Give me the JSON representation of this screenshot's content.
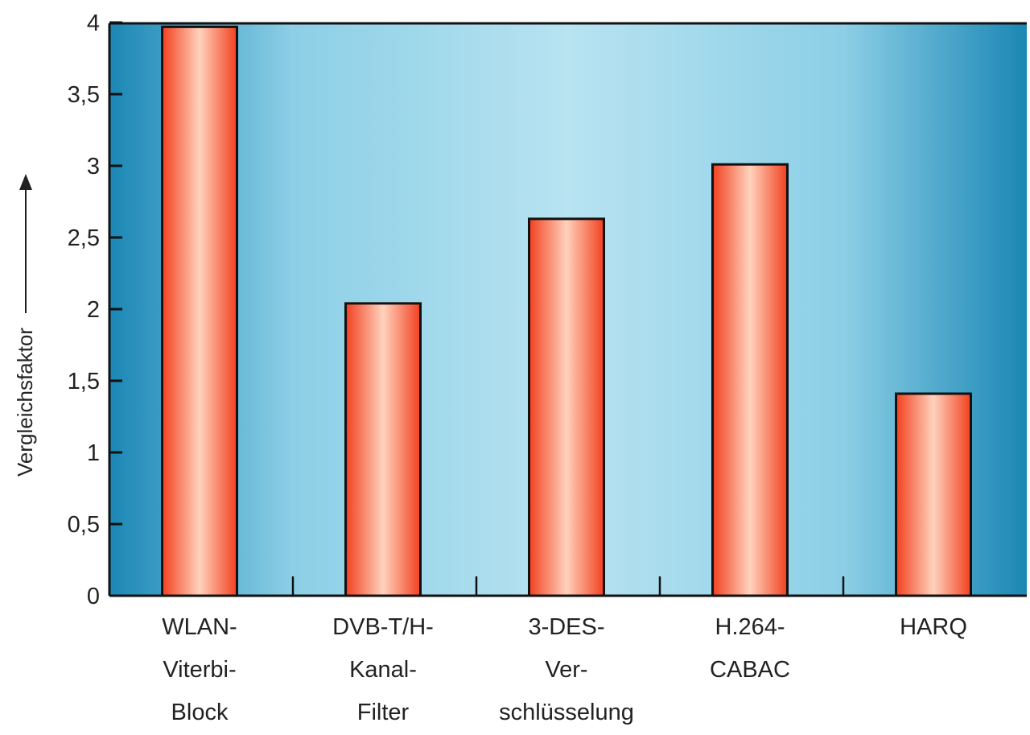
{
  "chart_data": {
    "type": "bar",
    "title": "",
    "xlabel": "",
    "ylabel": "Vergleichsfaktor",
    "ylim": [
      0,
      4
    ],
    "yticks": [
      0,
      0.5,
      1,
      1.5,
      2,
      2.5,
      3,
      3.5,
      4
    ],
    "ytick_labels": [
      "0",
      "0,5",
      "1",
      "1,5",
      "2",
      "2,5",
      "3",
      "3,5",
      "4"
    ],
    "grid": false,
    "categories": [
      [
        "WLAN-",
        "Viterbi-",
        "Block"
      ],
      [
        "DVB-T/H-",
        "Kanal-",
        "Filter"
      ],
      [
        "3-DES-",
        "Ver-",
        "schlüsselung"
      ],
      [
        "H.264-",
        "CABAC"
      ],
      [
        "HARQ"
      ]
    ],
    "values": [
      3.97,
      2.04,
      2.63,
      3.01,
      1.41
    ],
    "colors": {
      "bar_edge": "#f2401f",
      "bar_center": "#ffd2bd",
      "bg_edge": "#1b87b4",
      "bg_center": "#b5e1f0"
    }
  }
}
